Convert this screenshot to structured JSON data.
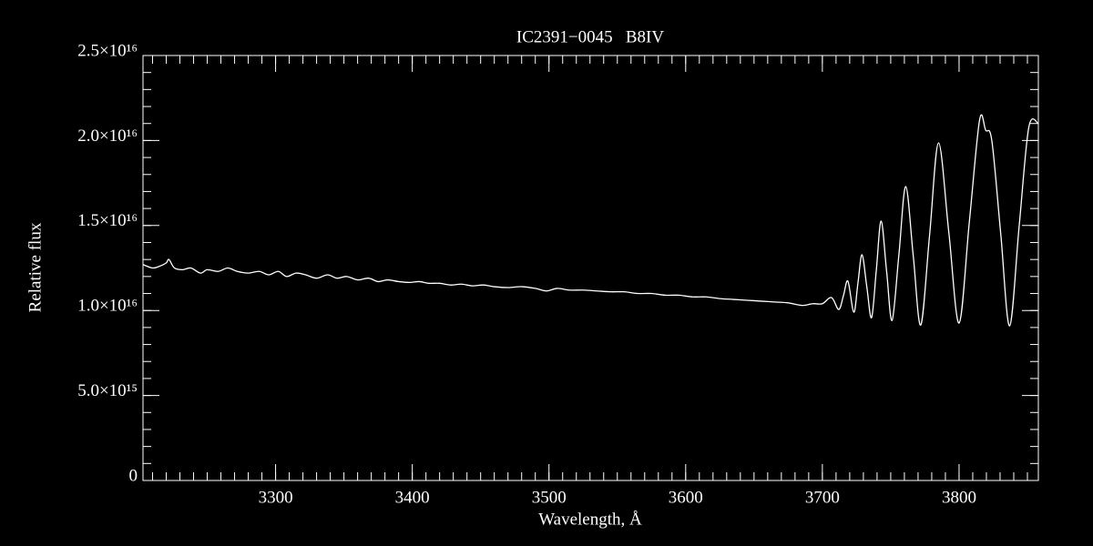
{
  "chart_data": {
    "type": "line",
    "title": "IC2391−0045   B8IV",
    "x_label": "Wavelength, Å",
    "y_label": "Relative flux",
    "x": [
      3203,
      3210,
      3215,
      3220,
      3222,
      3226,
      3232,
      3238,
      3245,
      3250,
      3258,
      3265,
      3272,
      3280,
      3288,
      3295,
      3302,
      3308,
      3315,
      3322,
      3330,
      3338,
      3345,
      3352,
      3360,
      3368,
      3375,
      3382,
      3390,
      3398,
      3405,
      3412,
      3420,
      3428,
      3436,
      3444,
      3452,
      3460,
      3470,
      3480,
      3490,
      3498,
      3506,
      3515,
      3525,
      3535,
      3545,
      3555,
      3565,
      3575,
      3585,
      3595,
      3605,
      3615,
      3625,
      3635,
      3645,
      3655,
      3665,
      3675,
      3685,
      3693,
      3700,
      3706.7,
      3712,
      3715.5,
      3718.7,
      3723,
      3726,
      3729,
      3732.5,
      3736,
      3739.5,
      3743,
      3747,
      3751,
      3756,
      3761,
      3766.5,
      3772,
      3778.5,
      3785,
      3792.5,
      3800,
      3807.5,
      3815,
      3819.5,
      3824,
      3830.5,
      3837,
      3844,
      3851,
      3858
    ],
    "series": [
      {
        "name": "flux",
        "color": "#ffffff",
        "values": [
          1.27e+16,
          1.25e+16,
          1.26e+16,
          1.28e+16,
          1.3e+16,
          1.25e+16,
          1.24e+16,
          1.25e+16,
          1.22e+16,
          1.24e+16,
          1.23e+16,
          1.25e+16,
          1.23e+16,
          1.22e+16,
          1.23e+16,
          1.21e+16,
          1.23e+16,
          1.2e+16,
          1.22e+16,
          1.21e+16,
          1.19e+16,
          1.21e+16,
          1.19e+16,
          1.2e+16,
          1.18e+16,
          1.19e+16,
          1.17e+16,
          1.18e+16,
          1.17e+16,
          1.165e+16,
          1.17e+16,
          1.16e+16,
          1.16e+16,
          1.15e+16,
          1.155e+16,
          1.145e+16,
          1.15e+16,
          1.14e+16,
          1.135e+16,
          1.14e+16,
          1.13e+16,
          1.115e+16,
          1.13e+16,
          1.12e+16,
          1.12e+16,
          1.115e+16,
          1.11e+16,
          1.11e+16,
          1.1e+16,
          1.1e+16,
          1.09e+16,
          1.09e+16,
          1.08e+16,
          1.08e+16,
          1.07e+16,
          1.065e+16,
          1.06e+16,
          1.055e+16,
          1.05e+16,
          1.045e+16,
          1.03e+16,
          1.04e+16,
          1.04e+16,
          1.076e+16,
          1.006e+16,
          1.09e+16,
          1.172e+16,
          9900000000000000.0,
          1.16e+16,
          1.328e+16,
          1.14e+16,
          9580000000000000.0,
          1.24e+16,
          1.526e+16,
          1.23e+16,
          9420000000000000.0,
          1.33e+16,
          1.729e+16,
          1.32e+16,
          9150000000000000.0,
          1.45e+16,
          1.986e+16,
          1.46e+16,
          9260000000000000.0,
          1.52e+16,
          2.12e+16,
          2.06e+16,
          1.997e+16,
          1.45e+16,
          9100000000000000.0,
          1.5e+16,
          2.077e+16,
          2.1e+16
        ]
      }
    ],
    "xlim": [
      3203,
      3858
    ],
    "ylim": [
      0,
      2.5e+16
    ],
    "xticks": [
      3300,
      3400,
      3500,
      3600,
      3700,
      3800
    ],
    "yticks": [
      0,
      {
        "value": 5000000000000000.0,
        "label": "5.0×10¹⁵"
      },
      {
        "value": 1e+16,
        "label": "1.0×10¹⁶"
      },
      {
        "value": 1.5e+16,
        "label": "1.5×10¹⁶"
      },
      {
        "value": 2e+16,
        "label": "2.0×10¹⁶"
      },
      {
        "value": 2.5e+16,
        "label": "2.5×10¹⁶"
      }
    ],
    "xminor": 10,
    "yminor": 1000000000000000.0,
    "grid": false,
    "background": "#000000"
  }
}
